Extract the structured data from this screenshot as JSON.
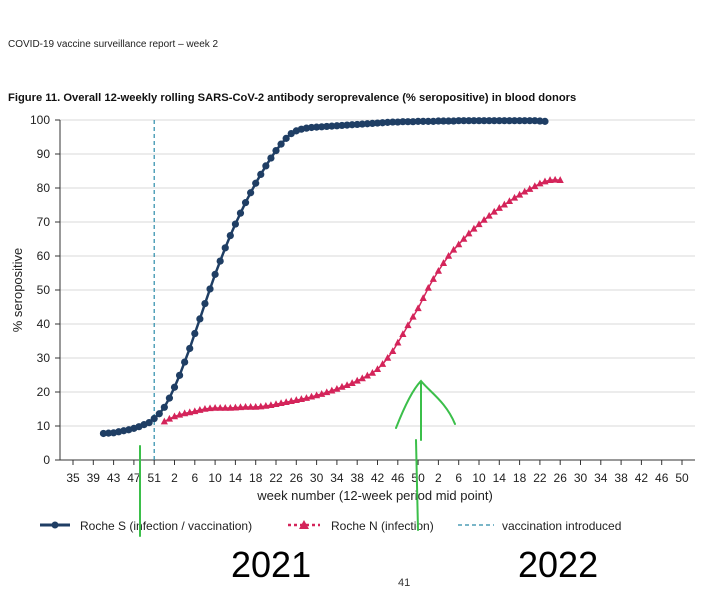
{
  "report_header": "COVID-19 vaccine surveillance report – week 2",
  "page_number": "41",
  "chart_data": {
    "type": "line",
    "title": "Figure 11. Overall 12-weekly rolling SARS-CoV-2 antibody seroprevalence (% seropositive) in blood donors",
    "xlabel": "week number  (12-week period mid point)",
    "ylabel": "% seropositive",
    "ylim": [
      0,
      100
    ],
    "yticks": [
      0,
      10,
      20,
      30,
      40,
      50,
      60,
      70,
      80,
      90,
      100
    ],
    "xticks": [
      "35",
      "39",
      "43",
      "47",
      "51",
      "2",
      "6",
      "10",
      "14",
      "18",
      "22",
      "26",
      "30",
      "34",
      "38",
      "42",
      "46",
      "50",
      "2",
      "6",
      "10",
      "14",
      "18",
      "22",
      "26",
      "30",
      "34",
      "38",
      "42",
      "46",
      "50"
    ],
    "x_tick_label_shown": [
      "35",
      "39",
      "43",
      "47",
      "51",
      "2",
      "6",
      "10",
      "14",
      "18",
      "22",
      "26",
      "30",
      "34",
      "38",
      "42",
      "46",
      "50",
      "2",
      "6",
      "10",
      "14",
      "18",
      "22",
      "26",
      "30",
      "34",
      "38",
      "42",
      "46",
      "50"
    ],
    "grid": "horizontal",
    "legend_placement": "bottom",
    "series": [
      {
        "name": "Roche S (infection / vaccination)",
        "color": "#1f3e64",
        "marker": "circle",
        "start_index": 6,
        "values": [
          7.8,
          7.9,
          8.0,
          8.3,
          8.6,
          8.9,
          9.3,
          9.8,
          10.4,
          11.0,
          12.2,
          13.6,
          15.5,
          18.2,
          21.4,
          24.9,
          28.8,
          32.8,
          37.2,
          41.5,
          46.0,
          50.3,
          54.6,
          58.5,
          62.4,
          66.0,
          69.4,
          72.6,
          75.7,
          78.6,
          81.4,
          84.0,
          86.5,
          88.8,
          91.0,
          92.9,
          94.6,
          96.0,
          96.8,
          97.3,
          97.6,
          97.8,
          97.9,
          98.0,
          98.1,
          98.2,
          98.3,
          98.4,
          98.5,
          98.6,
          98.7,
          98.8,
          98.9,
          99.0,
          99.1,
          99.2,
          99.3,
          99.4,
          99.4,
          99.5,
          99.5,
          99.5,
          99.6,
          99.6,
          99.6,
          99.6,
          99.7,
          99.7,
          99.7,
          99.7,
          99.8,
          99.8,
          99.8,
          99.8,
          99.8,
          99.8,
          99.8,
          99.8,
          99.8,
          99.8,
          99.8,
          99.8,
          99.8,
          99.8,
          99.8,
          99.8,
          99.7,
          99.6
        ]
      },
      {
        "name": "Roche N (infection)",
        "color": "#d4245a",
        "marker": "triangle",
        "start_index": 18,
        "values": [
          11.3,
          12.1,
          12.8,
          13.3,
          13.7,
          14.0,
          14.3,
          14.7,
          15.0,
          15.2,
          15.3,
          15.3,
          15.3,
          15.3,
          15.4,
          15.5,
          15.6,
          15.6,
          15.6,
          15.7,
          15.9,
          16.1,
          16.4,
          16.7,
          17.0,
          17.3,
          17.6,
          17.9,
          18.2,
          18.6,
          19.0,
          19.4,
          19.9,
          20.4,
          20.9,
          21.5,
          22.0,
          22.6,
          23.3,
          24.0,
          24.8,
          25.6,
          26.7,
          28.2,
          30.0,
          32.0,
          34.5,
          37.0,
          39.6,
          42.1,
          44.6,
          47.6,
          50.6,
          53.2,
          55.6,
          57.9,
          60.0,
          61.8,
          63.4,
          65.0,
          66.6,
          68.0,
          69.3,
          70.6,
          71.8,
          73.0,
          74.1,
          75.1,
          76.1,
          77.1,
          78.0,
          78.9,
          79.7,
          80.5,
          81.3,
          81.9,
          82.3,
          82.4,
          82.3
        ]
      }
    ],
    "annotations": {
      "vaccination_introduced_week": "51",
      "handwritten": [
        "2021",
        "2022"
      ]
    },
    "legend": [
      "Roche S (infection / vaccination)",
      "Roche N (infection)",
      "vaccination introduced"
    ]
  }
}
